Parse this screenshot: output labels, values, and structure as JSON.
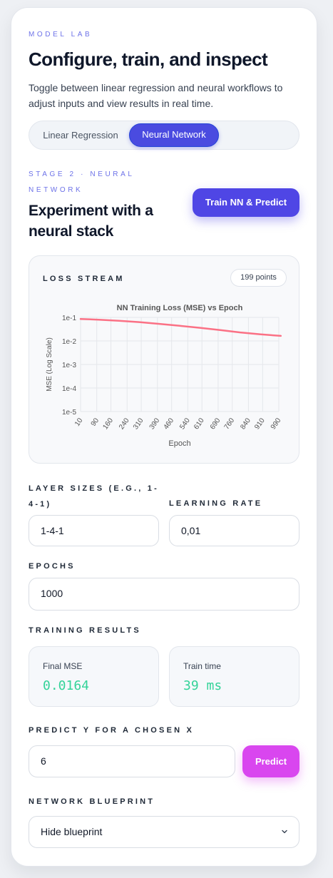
{
  "header": {
    "eyebrow": "MODEL LAB",
    "title": "Configure, train, and inspect",
    "intro": "Toggle between linear regression and neural workflows to adjust inputs and view results in real time."
  },
  "toggle": {
    "linear_label": "Linear Regression",
    "neural_label": "Neural Network",
    "active": "Neural Network"
  },
  "stage": {
    "eyebrow_line1": "STAGE 2 · NEURAL",
    "eyebrow_line2": "NETWORK",
    "title_line1": "Experiment with a",
    "title_line2": "neural stack",
    "train_button": "Train NN & Predict"
  },
  "loss_panel": {
    "title": "LOSS STREAM",
    "points_badge": "199 points"
  },
  "chart_data": {
    "type": "line",
    "title": "NN Training Loss (MSE) vs Epoch",
    "xlabel": "Epoch",
    "ylabel": "MSE (Log Scale)",
    "y_scale": "log",
    "ylim": [
      1e-05,
      0.1
    ],
    "y_ticks": [
      "1e-1",
      "1e-2",
      "1e-3",
      "1e-4",
      "1e-5"
    ],
    "x_ticks": [
      "10",
      "90",
      "160",
      "240",
      "310",
      "390",
      "460",
      "540",
      "610",
      "690",
      "760",
      "840",
      "910",
      "990"
    ],
    "grid": true,
    "series": [
      {
        "color": "#fb7185",
        "x": [
          10,
          100,
          200,
          300,
          400,
          500,
          600,
          700,
          800,
          900,
          1000
        ],
        "y": [
          0.086,
          0.08,
          0.072,
          0.063,
          0.053,
          0.044,
          0.036,
          0.029,
          0.023,
          0.019,
          0.0164
        ]
      }
    ]
  },
  "form": {
    "layer_label_line1": "LAYER SIZES (E.G., 1-",
    "layer_label_line2": "4-1)",
    "layer_value": "1-4-1",
    "lr_label": "LEARNING RATE",
    "lr_value": "0,01",
    "epochs_label": "EPOCHS",
    "epochs_value": "1000"
  },
  "results": {
    "title": "TRAINING RESULTS",
    "final_mse_label": "Final MSE",
    "final_mse_value": "0.0164",
    "train_time_label": "Train time",
    "train_time_value": "39 ms"
  },
  "predict": {
    "label": "PREDICT Y FOR A CHOSEN X",
    "x_value": "6",
    "button": "Predict"
  },
  "blueprint": {
    "label": "NETWORK BLUEPRINT",
    "selected": "Hide blueprint"
  },
  "colors": {
    "accent": "#4f46e5",
    "predict": "#d946ef",
    "metric": "#34d399",
    "loss_line": "#fb7185"
  }
}
